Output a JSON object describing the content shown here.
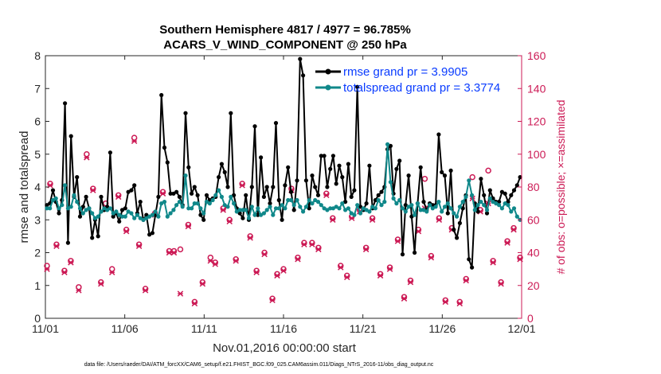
{
  "chart_data": {
    "type": "line",
    "title_line1": "Southern Hemisphere 4817 / 4977 = 96.785%",
    "title_line2": "ACARS_V_WIND_COMPONENT @ 250 hPa",
    "xlabel": "Nov.01,2016 00:00:00 start",
    "ylabel_left": "rmse and totalspread",
    "ylabel_right": "# of obs: o=possible; ×=assimilated",
    "xlim": [
      0,
      30
    ],
    "ylim_left": [
      0,
      8
    ],
    "ylim_right": [
      0,
      160
    ],
    "x_ticks": [
      {
        "value": 0,
        "label": "11/01"
      },
      {
        "value": 5,
        "label": "11/06"
      },
      {
        "value": 10,
        "label": "11/11"
      },
      {
        "value": 15,
        "label": "11/16"
      },
      {
        "value": 20,
        "label": "11/21"
      },
      {
        "value": 25,
        "label": "11/26"
      },
      {
        "value": 30,
        "label": "12/01"
      }
    ],
    "y_ticks_left": [
      "0",
      "1",
      "2",
      "3",
      "4",
      "5",
      "6",
      "7",
      "8"
    ],
    "y_ticks_right": [
      "0",
      "20",
      "40",
      "60",
      "80",
      "100",
      "120",
      "140",
      "160"
    ],
    "series": [
      {
        "name": "rmse",
        "legend": "rmse grand pr = 3.9905",
        "color": "#000000",
        "axis": "left",
        "values": [
          3.45,
          3.5,
          3.9,
          3.55,
          3.2,
          3.6,
          6.55,
          2.3,
          5.55,
          3.7,
          4.3,
          3.1,
          3.4,
          3.7,
          3.35,
          2.45,
          3.0,
          2.5,
          3.7,
          3.3,
          3.4,
          5.05,
          3.1,
          3.2,
          2.95,
          3.3,
          3.35,
          3.85,
          3.9,
          4.05,
          3.2,
          3.55,
          3.0,
          3.15,
          2.55,
          2.6,
          3.15,
          3.7,
          6.8,
          5.2,
          4.75,
          3.8,
          3.8,
          3.85,
          3.7,
          3.45,
          6.25,
          4.6,
          3.8,
          4.0,
          3.75,
          3.15,
          3.0,
          3.75,
          3.6,
          3.65,
          3.7,
          4.3,
          4.7,
          4.45,
          4.0,
          6.25,
          3.75,
          3.35,
          3.2,
          3.05,
          3.75,
          3.0,
          4.0,
          5.85,
          3.15,
          4.9,
          3.7,
          4.0,
          3.5,
          4.0,
          5.95,
          3.6,
          3.0,
          4.05,
          4.6,
          3.85,
          3.3,
          4.2,
          7.9,
          7.4,
          4.2,
          3.35,
          4.35,
          4.0,
          3.75,
          4.95,
          4.95,
          4.0,
          4.55,
          4.95,
          4.1,
          4.65,
          4.3,
          3.55,
          4.7,
          3.7,
          3.9,
          7.05,
          3.4,
          3.3,
          3.5,
          4.65,
          3.35,
          3.6,
          3.75,
          3.85,
          4.0,
          5.15,
          5.25,
          3.8,
          4.55,
          4.8,
          1.95,
          3.45,
          4.35,
          3.1,
          2.0,
          3.5,
          4.6,
          3.55,
          3.3,
          3.5,
          3.45,
          3.45,
          5.6,
          4.45,
          4.35,
          3.2,
          4.5,
          2.7,
          2.45,
          2.9,
          3.35,
          3.75,
          1.8,
          1.55,
          3.5,
          3.25,
          4.25,
          3.75,
          3.2,
          3.9,
          3.65,
          3.55,
          3.55,
          3.85,
          3.8,
          3.55,
          3.75,
          3.9,
          4.05,
          4.3
        ]
      },
      {
        "name": "totalspread",
        "legend": "totalspread grand pr = 3.3774",
        "color": "#10888a",
        "axis": "left",
        "values": [
          3.35,
          3.35,
          3.6,
          3.65,
          3.35,
          3.45,
          4.05,
          3.35,
          3.4,
          3.75,
          3.55,
          3.35,
          3.2,
          3.3,
          3.35,
          3.2,
          3.05,
          3.1,
          3.25,
          3.35,
          3.3,
          3.35,
          3.2,
          3.25,
          3.15,
          3.1,
          3.1,
          3.25,
          3.2,
          3.05,
          3.15,
          3.05,
          3.0,
          3.05,
          3.1,
          3.15,
          3.25,
          3.1,
          3.5,
          3.55,
          3.1,
          3.2,
          3.3,
          3.45,
          3.55,
          3.4,
          4.35,
          3.35,
          3.35,
          3.5,
          3.5,
          3.35,
          3.2,
          3.55,
          3.5,
          3.6,
          3.75,
          3.9,
          3.7,
          3.45,
          3.4,
          3.7,
          3.5,
          3.25,
          3.3,
          3.3,
          3.3,
          3.05,
          3.4,
          3.15,
          3.35,
          3.15,
          3.2,
          3.3,
          3.4,
          3.15,
          3.35,
          3.35,
          3.45,
          3.35,
          3.6,
          3.6,
          3.45,
          3.6,
          3.4,
          3.25,
          3.4,
          3.6,
          3.5,
          3.6,
          3.55,
          3.45,
          3.35,
          3.3,
          3.35,
          3.35,
          3.4,
          3.35,
          3.5,
          3.3,
          3.35,
          3.2,
          3.15,
          3.45,
          3.2,
          3.35,
          3.3,
          3.25,
          3.4,
          3.35,
          3.6,
          3.45,
          3.55,
          5.3,
          4.15,
          3.65,
          3.5,
          3.6,
          3.35,
          3.25,
          3.4,
          3.45,
          3.15,
          3.5,
          3.3,
          3.3,
          3.25,
          3.45,
          3.35,
          3.4,
          3.55,
          3.25,
          3.4,
          3.5,
          3.35,
          3.2,
          3.1,
          3.4,
          3.55,
          3.7,
          4.2,
          3.75,
          3.3,
          3.45,
          3.55,
          3.45,
          3.3,
          3.65,
          3.55,
          3.5,
          3.45,
          3.35,
          3.5,
          3.45,
          3.25,
          3.35,
          3.1,
          3.0
        ]
      }
    ],
    "obs_possible": [
      {
        "x": 0.1,
        "v": 32
      },
      {
        "x": 0.3,
        "v": 82
      },
      {
        "x": 0.7,
        "v": 45
      },
      {
        "x": 1.2,
        "v": 29
      },
      {
        "x": 1.6,
        "v": 35
      },
      {
        "x": 2.1,
        "v": 19
      },
      {
        "x": 2.6,
        "v": 100
      },
      {
        "x": 3.0,
        "v": 79
      },
      {
        "x": 3.5,
        "v": 22
      },
      {
        "x": 3.8,
        "v": 70
      },
      {
        "x": 4.2,
        "v": 30
      },
      {
        "x": 4.6,
        "v": 75
      },
      {
        "x": 5.1,
        "v": 54
      },
      {
        "x": 5.6,
        "v": 110
      },
      {
        "x": 5.9,
        "v": 45
      },
      {
        "x": 6.3,
        "v": 18
      },
      {
        "x": 6.9,
        "v": 64
      },
      {
        "x": 7.4,
        "v": 77
      },
      {
        "x": 7.8,
        "v": 41
      },
      {
        "x": 8.1,
        "v": 41
      },
      {
        "x": 8.5,
        "v": 42
      },
      {
        "x": 9.0,
        "v": 57
      },
      {
        "x": 9.4,
        "v": 10
      },
      {
        "x": 9.9,
        "v": 22
      },
      {
        "x": 10.4,
        "v": 37
      },
      {
        "x": 10.7,
        "v": 34
      },
      {
        "x": 11.2,
        "v": 67
      },
      {
        "x": 11.6,
        "v": 60
      },
      {
        "x": 12.0,
        "v": 36
      },
      {
        "x": 12.4,
        "v": 82
      },
      {
        "x": 12.9,
        "v": 50
      },
      {
        "x": 13.3,
        "v": 29
      },
      {
        "x": 13.8,
        "v": 40
      },
      {
        "x": 14.3,
        "v": 12
      },
      {
        "x": 14.6,
        "v": 27
      },
      {
        "x": 15.0,
        "v": 30
      },
      {
        "x": 15.5,
        "v": 79
      },
      {
        "x": 15.9,
        "v": 37
      },
      {
        "x": 16.3,
        "v": 46
      },
      {
        "x": 16.8,
        "v": 46
      },
      {
        "x": 17.2,
        "v": 43
      },
      {
        "x": 17.7,
        "v": 76
      },
      {
        "x": 18.1,
        "v": 61
      },
      {
        "x": 18.6,
        "v": 32
      },
      {
        "x": 19.0,
        "v": 26
      },
      {
        "x": 19.3,
        "v": 62
      },
      {
        "x": 19.8,
        "v": 66
      },
      {
        "x": 20.2,
        "v": 43
      },
      {
        "x": 20.6,
        "v": 61
      },
      {
        "x": 21.1,
        "v": 27
      },
      {
        "x": 21.7,
        "v": 31
      },
      {
        "x": 22.2,
        "v": 48
      },
      {
        "x": 22.6,
        "v": 13
      },
      {
        "x": 23.0,
        "v": 23
      },
      {
        "x": 23.5,
        "v": 54
      },
      {
        "x": 23.9,
        "v": 85
      },
      {
        "x": 24.3,
        "v": 38
      },
      {
        "x": 24.8,
        "v": 61
      },
      {
        "x": 25.2,
        "v": 11
      },
      {
        "x": 25.6,
        "v": 55
      },
      {
        "x": 26.1,
        "v": 10
      },
      {
        "x": 26.5,
        "v": 24
      },
      {
        "x": 26.9,
        "v": 86
      },
      {
        "x": 27.4,
        "v": 66
      },
      {
        "x": 27.9,
        "v": 90
      },
      {
        "x": 28.2,
        "v": 35
      },
      {
        "x": 28.7,
        "v": 22
      },
      {
        "x": 29.1,
        "v": 47
      },
      {
        "x": 29.5,
        "v": 55
      },
      {
        "x": 29.9,
        "v": 37
      }
    ],
    "obs_assimilated": [
      {
        "x": 0.1,
        "v": 30
      },
      {
        "x": 0.3,
        "v": 81
      },
      {
        "x": 0.7,
        "v": 44
      },
      {
        "x": 1.2,
        "v": 28
      },
      {
        "x": 1.6,
        "v": 34
      },
      {
        "x": 2.1,
        "v": 17
      },
      {
        "x": 2.6,
        "v": 98
      },
      {
        "x": 3.0,
        "v": 78
      },
      {
        "x": 3.5,
        "v": 21
      },
      {
        "x": 3.8,
        "v": 68
      },
      {
        "x": 4.2,
        "v": 28
      },
      {
        "x": 4.6,
        "v": 74
      },
      {
        "x": 5.1,
        "v": 53
      },
      {
        "x": 5.6,
        "v": 108
      },
      {
        "x": 5.9,
        "v": 44
      },
      {
        "x": 6.3,
        "v": 17
      },
      {
        "x": 6.9,
        "v": 63
      },
      {
        "x": 7.4,
        "v": 76
      },
      {
        "x": 7.8,
        "v": 40
      },
      {
        "x": 8.1,
        "v": 40
      },
      {
        "x": 8.5,
        "v": 15
      },
      {
        "x": 9.0,
        "v": 56
      },
      {
        "x": 9.4,
        "v": 9
      },
      {
        "x": 9.9,
        "v": 21
      },
      {
        "x": 10.4,
        "v": 35
      },
      {
        "x": 10.7,
        "v": 33
      },
      {
        "x": 11.2,
        "v": 66
      },
      {
        "x": 11.6,
        "v": 59
      },
      {
        "x": 12.0,
        "v": 35
      },
      {
        "x": 12.4,
        "v": 81
      },
      {
        "x": 12.9,
        "v": 49
      },
      {
        "x": 13.3,
        "v": 28
      },
      {
        "x": 13.8,
        "v": 39
      },
      {
        "x": 14.3,
        "v": 11
      },
      {
        "x": 14.6,
        "v": 26
      },
      {
        "x": 15.0,
        "v": 29
      },
      {
        "x": 15.5,
        "v": 78
      },
      {
        "x": 15.9,
        "v": 36
      },
      {
        "x": 16.3,
        "v": 45
      },
      {
        "x": 16.8,
        "v": 45
      },
      {
        "x": 17.2,
        "v": 42
      },
      {
        "x": 17.7,
        "v": 75
      },
      {
        "x": 18.1,
        "v": 60
      },
      {
        "x": 18.6,
        "v": 31
      },
      {
        "x": 19.0,
        "v": 25
      },
      {
        "x": 19.3,
        "v": 61
      },
      {
        "x": 19.8,
        "v": 65
      },
      {
        "x": 20.2,
        "v": 42
      },
      {
        "x": 20.6,
        "v": 60
      },
      {
        "x": 21.1,
        "v": 26
      },
      {
        "x": 21.7,
        "v": 30
      },
      {
        "x": 22.2,
        "v": 47
      },
      {
        "x": 22.6,
        "v": 12
      },
      {
        "x": 23.0,
        "v": 22
      },
      {
        "x": 23.5,
        "v": 53
      },
      {
        "x": 23.9,
        "v": 67
      },
      {
        "x": 24.3,
        "v": 37
      },
      {
        "x": 24.8,
        "v": 60
      },
      {
        "x": 25.2,
        "v": 10
      },
      {
        "x": 25.6,
        "v": 54
      },
      {
        "x": 26.1,
        "v": 9
      },
      {
        "x": 26.5,
        "v": 23
      },
      {
        "x": 26.9,
        "v": 73
      },
      {
        "x": 27.4,
        "v": 65
      },
      {
        "x": 27.9,
        "v": 70
      },
      {
        "x": 28.2,
        "v": 34
      },
      {
        "x": 28.7,
        "v": 21
      },
      {
        "x": 29.1,
        "v": 46
      },
      {
        "x": 29.5,
        "v": 54
      },
      {
        "x": 29.9,
        "v": 36
      }
    ]
  },
  "footnote": "data file: /Users/raeder/DAI/ATM_forcXX/CAM6_setup/f.e21.FHIST_BGC.f09_025.CAM6assim.011/Diags_NTrS_2016-11/obs_diag_output.nc",
  "colors": {
    "rmse": "#000000",
    "totalspread": "#10888a",
    "obs": "#cc1a55",
    "legend_text": "#0a3cff"
  }
}
